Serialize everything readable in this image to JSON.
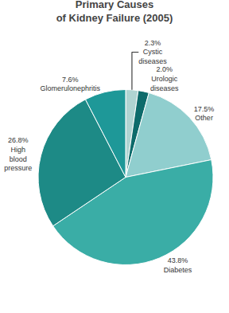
{
  "chart_data": {
    "type": "pie",
    "title": "Primary Causes\nof Kidney Failure (2005)",
    "categories": [
      "Cystic\ndiseases",
      "Urologic\ndiseases",
      "Other",
      "Diabetes",
      "High\nblood\npressure",
      "Glomerulonephritis"
    ],
    "values": [
      2.3,
      2.0,
      17.5,
      43.8,
      26.8,
      7.6
    ],
    "value_labels": [
      "2.3%",
      "2.0%",
      "17.5%",
      "43.8%",
      "26.8%",
      "7.6%"
    ],
    "colors": [
      "#afd4d2",
      "#0d6b6b",
      "#90cece",
      "#3aada6",
      "#1d8a86",
      "#1e9898"
    ],
    "data_labels": true
  }
}
